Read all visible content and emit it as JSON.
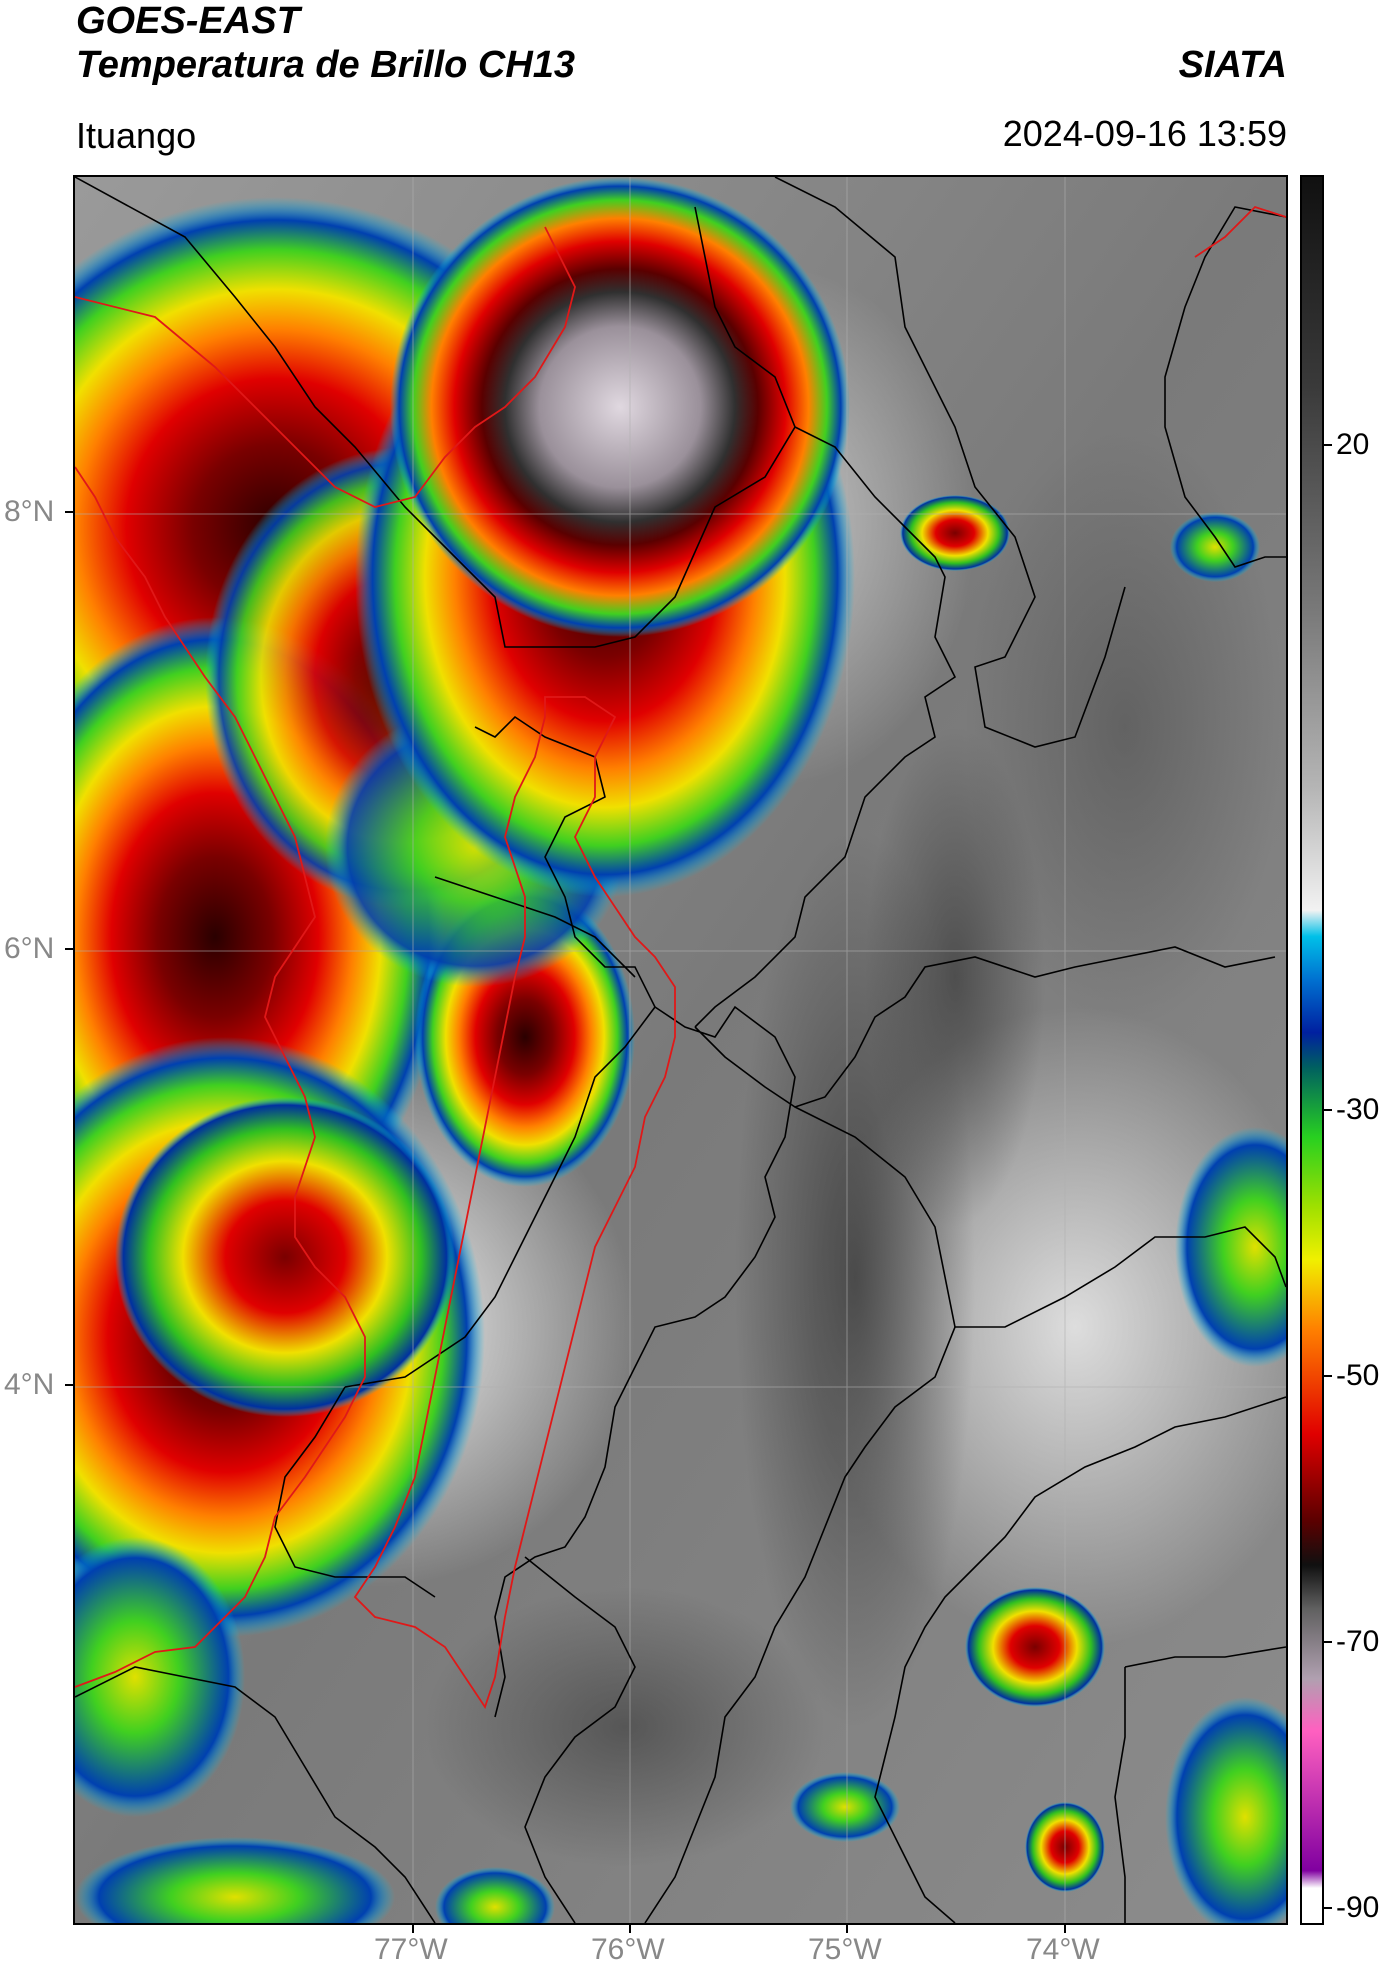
{
  "header": {
    "title_line1": "GOES-EAST",
    "title_line2": "Temperatura de Brillo CH13",
    "agency": "SIATA",
    "location": "Ituango",
    "datetime": "2024-09-16 13:59"
  },
  "map": {
    "lat_labels": [
      "8°N",
      "6°N",
      "4°N"
    ],
    "lon_labels": [
      "77°W",
      "76°W",
      "75°W",
      "74°W"
    ],
    "border_color": "#000000",
    "region_outline_color": "#e02020"
  },
  "colorbar": {
    "ticks": [
      "20",
      "-30",
      "-50",
      "-70",
      "-90"
    ],
    "colors": {
      "warm_gray": "#3a3a3a",
      "light": "#f2f2f2",
      "cyan": "#00c0e8",
      "blue": "#0020a0",
      "green": "#28d020",
      "yellow": "#f0f000",
      "orange": "#ff8000",
      "red": "#e00000",
      "dark_red": "#5a0000",
      "black": "#101010",
      "pink": "#ff60c0",
      "purple": "#8000a0"
    }
  }
}
